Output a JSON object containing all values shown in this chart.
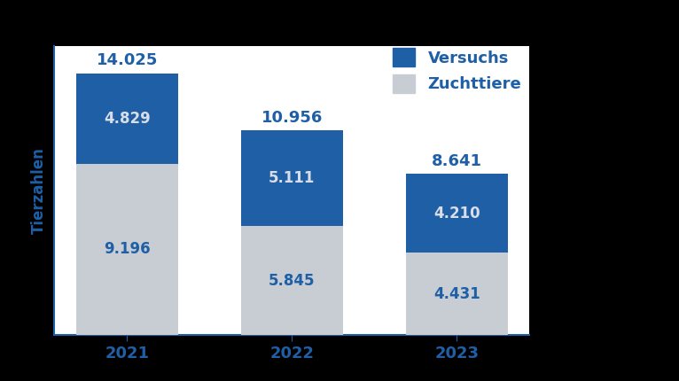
{
  "years": [
    "2021",
    "2022",
    "2023"
  ],
  "versuchstiere": [
    4829,
    5111,
    4210
  ],
  "zuchttiere": [
    9196,
    5845,
    4431
  ],
  "totals": [
    14025,
    10956,
    8641
  ],
  "color_versuch": "#1f5fa6",
  "color_zucht": "#c8cdd4",
  "color_text_dark": "#1f5fa6",
  "color_text_white": "#d8dde8",
  "ylabel": "Tierzahlen",
  "legend_versuch": "Versuchs",
  "legend_zucht": "Zuchttiere",
  "bar_width": 0.62,
  "ylim": [
    0,
    15500
  ],
  "figsize": [
    7.66,
    4.3
  ],
  "dpi": 100,
  "background_color": "#000000",
  "plot_bg": "#ffffff",
  "total_fontsize": 13,
  "label_fontsize": 12,
  "axis_label_fontsize": 12,
  "tick_fontsize": 13,
  "legend_fontsize": 13
}
